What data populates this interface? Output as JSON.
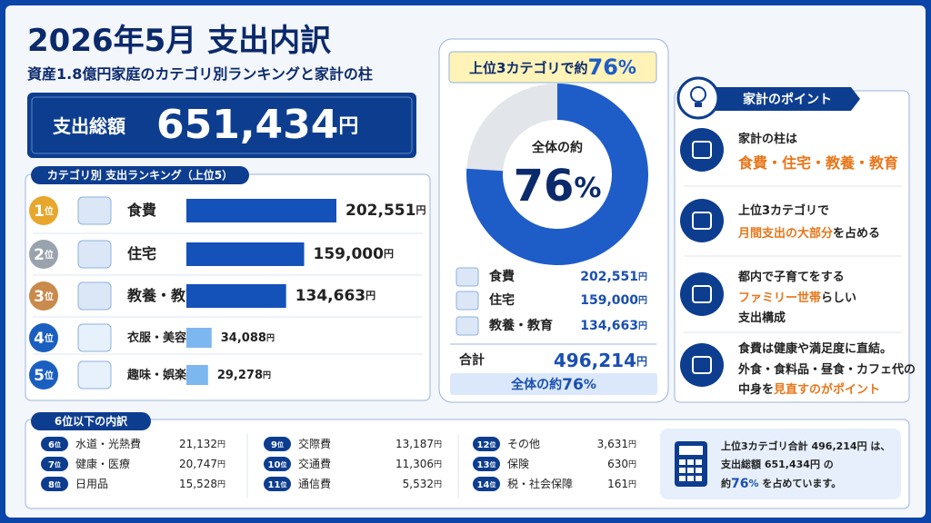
{
  "header": {
    "title": "2026年5月 支出内訳",
    "subtitle": "資産1.8億円家庭のカテゴリ別ランキングと家計の柱"
  },
  "unit": "円",
  "total": {
    "label": "支出総額",
    "value": "651,434"
  },
  "ranking": {
    "title": "カテゴリ別 支出ランキング（上位5）",
    "rank_suffix": "位",
    "items": [
      {
        "rank": "1",
        "name": "食費",
        "value": 202551,
        "value_label": "202,551",
        "color": "#1451b8",
        "badge_color": "#e8a62c"
      },
      {
        "rank": "2",
        "name": "住宅",
        "value": 159000,
        "value_label": "159,000",
        "color": "#1451b8",
        "badge_color": "#9aa3ad"
      },
      {
        "rank": "3",
        "name": "教養・教育",
        "value": 134663,
        "value_label": "134,663",
        "color": "#1451b8",
        "badge_color": "#c98a4b"
      },
      {
        "rank": "4",
        "name": "衣服・美容",
        "value": 34088,
        "value_label": "34,088",
        "color": "#7db7ef",
        "badge_color": "#1a5fc0"
      },
      {
        "rank": "5",
        "name": "趣味・娯楽",
        "value": 29278,
        "value_label": "29,278",
        "color": "#7db7ef",
        "badge_color": "#1a5fc0"
      }
    ]
  },
  "share": {
    "title": "上位3カテゴリで約",
    "value": 76,
    "unit": "%",
    "center_label": "全体の約",
    "color": "#1e5cc8",
    "rest_color": "#e2e5ea",
    "sum_label": "合計",
    "sum_value": "496,214",
    "footer": "全体の約"
  },
  "points": {
    "title": "家計のポイント",
    "items": [
      {
        "lines": [
          [
            {
              "t": "家計の柱は"
            }
          ],
          [
            {
              "t": "食費・住宅・教養・教育",
              "em": true
            }
          ]
        ]
      },
      {
        "lines": [
          [
            {
              "t": "上位3カテゴリで"
            }
          ],
          [
            {
              "t": "月間支出の大部分",
              "em": true
            },
            {
              "t": "を占める"
            }
          ]
        ]
      },
      {
        "lines": [
          [
            {
              "t": "都内で子育てをする"
            }
          ],
          [
            {
              "t": "ファミリー世帯",
              "em": true
            },
            {
              "t": "らしい"
            }
          ],
          [
            {
              "t": "支出構成"
            }
          ]
        ]
      },
      {
        "lines": [
          [
            {
              "t": "食費は健康や満足度に直結。"
            }
          ],
          [
            {
              "t": "外食・食料品・昼食・カフェ代の"
            }
          ],
          [
            {
              "t": "中身を"
            },
            {
              "t": "見直すのがポイント",
              "em": true
            }
          ]
        ]
      }
    ]
  },
  "rest": {
    "title": "6位以下の内訳",
    "items": [
      {
        "rank": "6",
        "name": "水道・光熱費",
        "value": "21,132"
      },
      {
        "rank": "7",
        "name": "健康・医療",
        "value": "20,747"
      },
      {
        "rank": "8",
        "name": "日用品",
        "value": "15,528"
      },
      {
        "rank": "9",
        "name": "交際費",
        "value": "13,187"
      },
      {
        "rank": "10",
        "name": "交通費",
        "value": "11,306"
      },
      {
        "rank": "11",
        "name": "通信費",
        "value": "5,532"
      },
      {
        "rank": "12",
        "name": "その他",
        "value": "3,631"
      },
      {
        "rank": "13",
        "name": "保険",
        "value": "630"
      },
      {
        "rank": "14",
        "name": "税・社会保障",
        "value": "161"
      }
    ]
  },
  "note": {
    "l1a": "上位3カテゴリ合計 ",
    "l1b": " は、",
    "l2a": "支出総額 ",
    "l2b": " の",
    "l3a": "約",
    "l3b": " を占めています。"
  }
}
